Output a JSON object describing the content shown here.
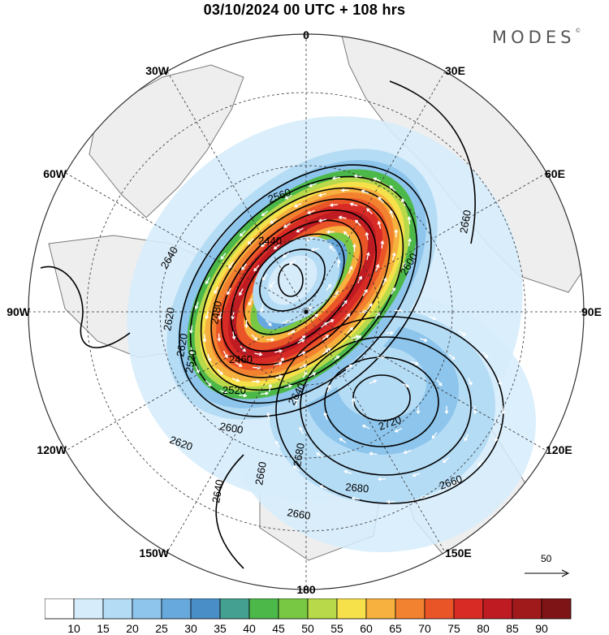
{
  "title": "03/10/2024  00 UTC  + 108 hrs",
  "brand": "MODES",
  "brand_mark": "©",
  "longitude_labels": [
    "0",
    "30E",
    "60E",
    "90E",
    "120E",
    "150E",
    "180",
    "150W",
    "120W",
    "90W",
    "60W",
    "30W"
  ],
  "contour_labels": [
    "2560",
    "2440",
    "2640",
    "2600",
    "2620",
    "2480",
    "2520",
    "2460",
    "2520",
    "2640",
    "2600",
    "2620",
    "2720",
    "2680",
    "2660",
    "2680",
    "2660",
    "2660",
    "2640",
    "2620",
    "2660"
  ],
  "reference_vector": {
    "label": "50"
  },
  "colorbar": {
    "labels": [
      "10",
      "15",
      "20",
      "25",
      "30",
      "35",
      "40",
      "45",
      "50",
      "55",
      "60",
      "65",
      "70",
      "75",
      "80",
      "85",
      "90"
    ],
    "colors": [
      "#ffffff",
      "#d6ecfb",
      "#b5dcf5",
      "#8dc5ec",
      "#67a9dd",
      "#4a8ec7",
      "#44a090",
      "#4cb84a",
      "#79c843",
      "#b7d94a",
      "#f6e14b",
      "#f7b13e",
      "#f2822f",
      "#ea5528",
      "#d92b25",
      "#bf1b22",
      "#a01a1c",
      "#7e1416"
    ]
  },
  "colors": {
    "land": "#eeeeee",
    "coast": "#7a7a7a"
  },
  "icons": [
    "arrow-right-icon"
  ]
}
